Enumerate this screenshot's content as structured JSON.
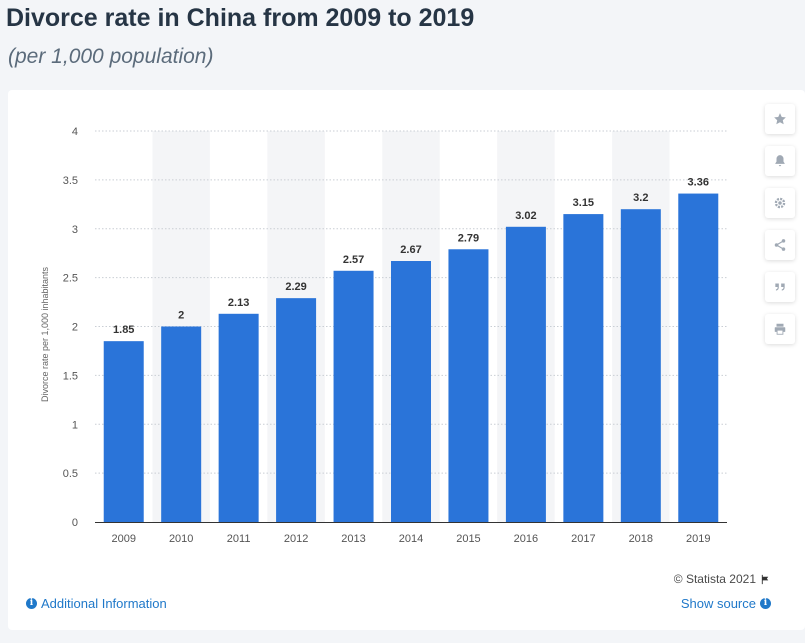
{
  "header": {
    "title": "Divorce rate in China from 2009 to 2019",
    "subtitle": "(per 1,000 population)"
  },
  "chart_data": {
    "type": "bar",
    "categories": [
      "2009",
      "2010",
      "2011",
      "2012",
      "2013",
      "2014",
      "2015",
      "2016",
      "2017",
      "2018",
      "2019"
    ],
    "values": [
      1.85,
      2,
      2.13,
      2.29,
      2.57,
      2.67,
      2.79,
      3.02,
      3.15,
      3.2,
      3.36
    ],
    "value_labels": [
      "1.85",
      "2",
      "2.13",
      "2.29",
      "2.57",
      "2.67",
      "2.79",
      "3.02",
      "3.15",
      "3.2",
      "3.36"
    ],
    "ylabel": "Divorce rate per 1,000 inhabitants",
    "ylim": [
      0,
      4
    ],
    "yticks": [
      "0",
      "0.5",
      "1",
      "1.5",
      "2",
      "2.5",
      "3",
      "3.5",
      "4"
    ],
    "grid": true,
    "bar_color": "#2a74d9"
  },
  "side_toolbar": {
    "buttons": [
      "star-icon",
      "bell-icon",
      "gear-icon",
      "share-icon",
      "quote-icon",
      "print-icon"
    ]
  },
  "footer": {
    "copyright": "© Statista 2021",
    "additional_info": "Additional Information",
    "show_source": "Show source"
  },
  "colors": {
    "link": "#1f78c9",
    "title": "#263545"
  }
}
